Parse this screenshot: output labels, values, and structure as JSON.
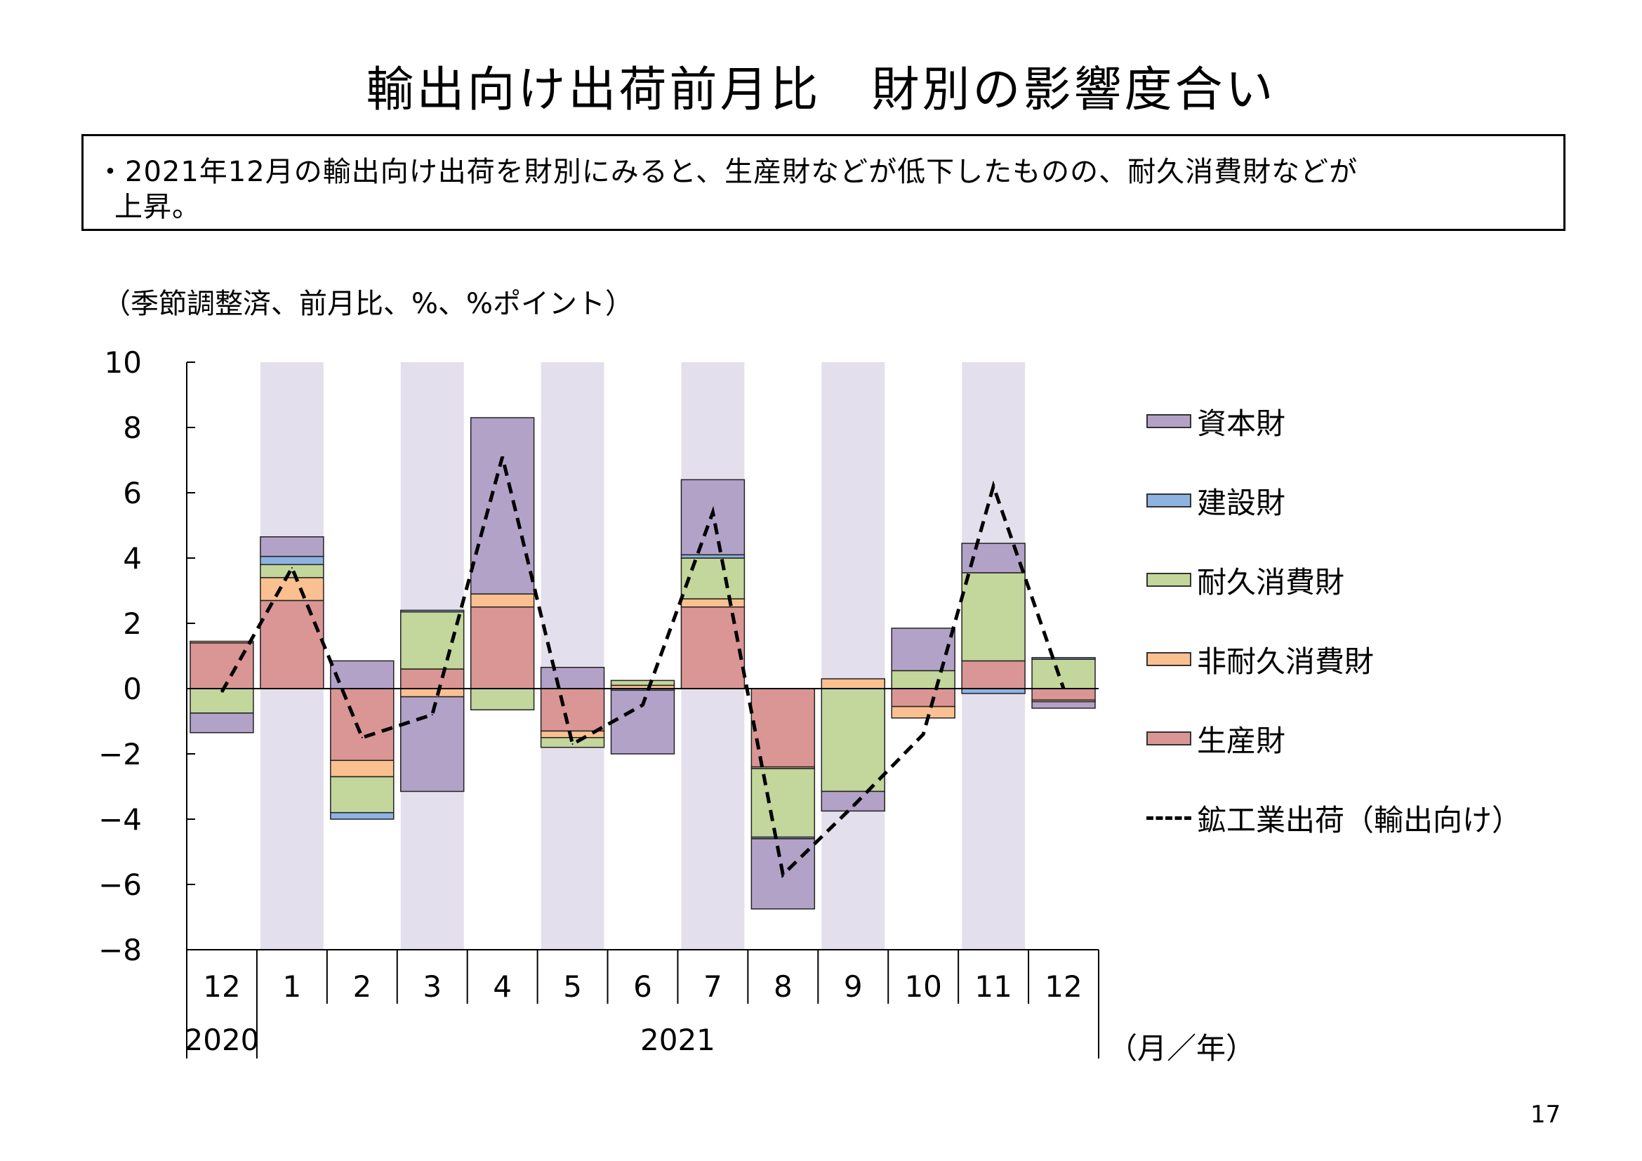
{
  "title": "輸出向け出荷前月比　財別の影響度合い",
  "summary": {
    "line1": "・2021年12月の輸出向け出荷を財別にみると、生産財などが低下したものの、耐久消費財などが",
    "line2": "上昇。"
  },
  "unit_note": "（季節調整済、前月比、%、%ポイント）",
  "page_number": "17",
  "colors": {
    "capital": "#b3a2c7",
    "construction": "#8db3e2",
    "durable": "#c3d69b",
    "nondurable": "#fac090",
    "production": "#d99694",
    "shade": "#e4dfec"
  },
  "chart_data": {
    "type": "bar",
    "stacked": true,
    "ylim": [
      -8,
      10
    ],
    "yticks": [
      "10",
      "8",
      "6",
      "4",
      "2",
      "0",
      "−2",
      "−4",
      "−6",
      "−8"
    ],
    "categories": [
      "12",
      "1",
      "2",
      "3",
      "4",
      "5",
      "6",
      "7",
      "8",
      "9",
      "10",
      "11",
      "12"
    ],
    "year_labels": [
      {
        "label": "2020",
        "from": 0,
        "to": 0
      },
      {
        "label": "2021",
        "from": 1,
        "to": 12
      }
    ],
    "xaxis_unit": "（月／年）",
    "shaded_categories": [
      1,
      3,
      5,
      7,
      9,
      11
    ],
    "series": [
      {
        "name": "生産財",
        "key": "production",
        "values": [
          1.4,
          2.7,
          -2.2,
          0.6,
          2.5,
          -1.3,
          0.0,
          2.5,
          -2.4,
          0.0,
          -0.55,
          0.85,
          -0.35
        ]
      },
      {
        "name": "非耐久消費財",
        "key": "nondurable",
        "values": [
          0.05,
          0.7,
          -0.5,
          -0.25,
          0.4,
          -0.2,
          0.1,
          0.25,
          -0.05,
          0.3,
          -0.35,
          0.0,
          -0.05
        ]
      },
      {
        "name": "耐久消費財",
        "key": "durable",
        "values": [
          -0.75,
          0.4,
          -1.1,
          1.75,
          -0.65,
          -0.3,
          0.15,
          1.25,
          -2.1,
          -3.15,
          0.55,
          2.7,
          0.9
        ]
      },
      {
        "name": "建設財",
        "key": "construction",
        "values": [
          0.0,
          0.25,
          -0.2,
          0.05,
          0.0,
          0.0,
          -0.05,
          0.1,
          -0.05,
          0.0,
          0.0,
          -0.15,
          0.05
        ]
      },
      {
        "name": "資本財",
        "key": "capital",
        "values": [
          -0.6,
          0.6,
          0.85,
          -2.9,
          5.4,
          0.65,
          -1.95,
          2.3,
          -2.15,
          -0.6,
          1.3,
          0.9,
          -0.2
        ]
      }
    ],
    "line": {
      "name": "鉱工業出荷（輸出向け）",
      "values": [
        -0.1,
        3.7,
        -1.5,
        -0.8,
        7.1,
        -1.7,
        -0.5,
        5.4,
        -5.7,
        -3.6,
        -1.4,
        6.2,
        0.0
      ]
    },
    "legend": [
      "資本財",
      "建設財",
      "耐久消費財",
      "非耐久消費財",
      "生産財",
      "鉱工業出荷（輸出向け）"
    ]
  }
}
